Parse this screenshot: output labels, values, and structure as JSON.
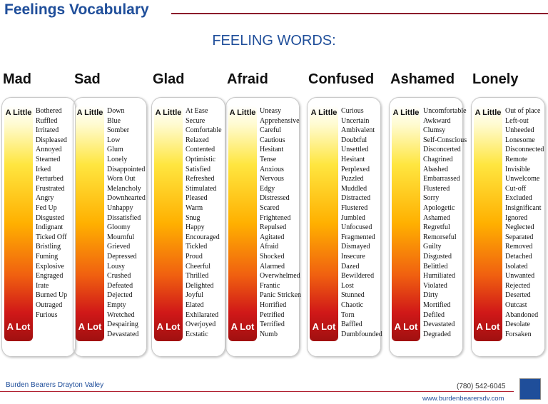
{
  "header": {
    "title": "Feelings Vocabulary",
    "subtitle": "FEELING WORDS:"
  },
  "columns": [
    {
      "heading": "Mad",
      "low": "A Little",
      "high": "A Lot",
      "words": [
        "Bothered",
        "Ruffled",
        "Irritated",
        "Displeased",
        "Annoyed",
        "Steamed",
        "Irked",
        "Perturbed",
        "Frustrated",
        "Angry",
        "Fed Up",
        "Disgusted",
        "Indignant",
        "Ticked Off",
        "Bristling",
        "Fuming",
        "Explosive",
        "Engraged",
        "Irate",
        "Burned Up",
        "Outraged",
        "Furious"
      ]
    },
    {
      "heading": "Sad",
      "low": "A Little",
      "high": "A Lot",
      "words": [
        "Down",
        "Blue",
        "Somber",
        "Low",
        "Glum",
        "Lonely",
        "Disappointed",
        "Worn Out",
        "Melancholy",
        "Downhearted",
        "Unhappy",
        "Dissatisfied",
        "Gloomy",
        "Mournful",
        "Grieved",
        "Depressed",
        "Lousy",
        "Crushed",
        "Defeated",
        "Dejected",
        "Empty",
        "Wretched",
        "Despairing",
        "Devastated"
      ]
    },
    {
      "heading": "Glad",
      "low": "A Little",
      "high": "A Lot",
      "words": [
        "At Ease",
        "Secure",
        "Comfortable",
        "Relaxed",
        "Contented",
        "Optimistic",
        "Satisfied",
        "Refreshed",
        "Stimulated",
        "Pleased",
        "Warm",
        "Snug",
        "Happy",
        "Encouraged",
        "Tickled",
        "Proud",
        "Cheerful",
        "Thrilled",
        "Delighted",
        "Joyful",
        "Elated",
        "Exhilarated",
        "Overjoyed",
        "Ecstatic"
      ]
    },
    {
      "heading": "Afraid",
      "low": "A Little",
      "high": "A Lot",
      "words": [
        "Uneasy",
        "Apprehensive",
        "Careful",
        "Cautious",
        "Hesitant",
        "Tense",
        "Anxious",
        "Nervous",
        "Edgy",
        "Distressed",
        "Scared",
        "Frightened",
        "Repulsed",
        "Agitated",
        "Afraid",
        "Shocked",
        "Alarmed",
        "Overwhelmed",
        "Frantic",
        "Panic Stricken",
        "Horrified",
        "Petrified",
        "Terrified",
        "Numb"
      ]
    },
    {
      "heading": "Confused",
      "low": "A Little",
      "high": "A Lot",
      "words": [
        "Curious",
        "Uncertain",
        "Ambivalent",
        "Doubtful",
        "Unsettled",
        "Hesitant",
        "Perplexed",
        "Puzzled",
        "Muddled",
        "Distracted",
        "Flustered",
        "Jumbled",
        "Unfocused",
        "Fragmented",
        "Dismayed",
        "Insecure",
        "Dazed",
        "Bewildered",
        "Lost",
        "Stunned",
        "Chaotic",
        "Torn",
        "Baffled",
        "Dumbfounded"
      ]
    },
    {
      "heading": "Ashamed",
      "low": "A Little",
      "high": "A Lot",
      "words": [
        "Uncomfortable",
        "Awkward",
        "Clumsy",
        "Self-Conscious",
        "Disconcerted",
        "Chagrined",
        "Abashed",
        "Embarrassed",
        "Flustered",
        "Sorry",
        "Apologetic",
        "Ashamed",
        "Regretful",
        "Remorseful",
        "Guilty",
        "Disgusted",
        "Belittled",
        "Humiliated",
        "Violated",
        "Dirty",
        "Mortified",
        "Defiled",
        "Devastated",
        "Degraded"
      ]
    },
    {
      "heading": "Lonely",
      "low": "A Little",
      "high": "A Lot",
      "words": [
        "Out of place",
        "Left-out",
        "Unheeded",
        "Lonesome",
        "Disconnected",
        "Remote",
        "Invisible",
        "Unwelcome",
        "Cut-off",
        "Excluded",
        "Insignificant",
        "Ignored",
        "Neglected",
        "Separated",
        "Removed",
        "Detached",
        "Isolated",
        "Unwanted",
        "Rejected",
        "Deserted",
        "Outcast",
        "Abandoned",
        "Desolate",
        "Forsaken"
      ]
    }
  ],
  "footer": {
    "organization": "Burden Bearers Drayton Valley",
    "phone": "(780) 542-6045",
    "website": "www.burdenbearersdv.com"
  }
}
